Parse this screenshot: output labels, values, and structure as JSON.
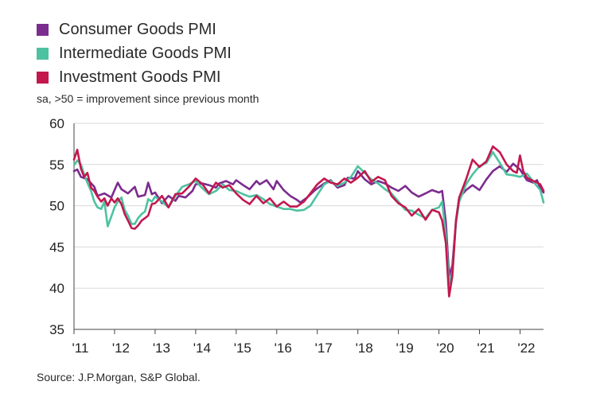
{
  "legend": [
    {
      "label": "Consumer Goods PMI",
      "color": "#7B2C8F"
    },
    {
      "label": "Intermediate Goods PMI",
      "color": "#4DC2A0"
    },
    {
      "label": "Investment Goods PMI",
      "color": "#C2184E"
    }
  ],
  "subtitle": "sa, >50 = improvement since previous month",
  "source": "Source: J.P.Morgan, S&P Global.",
  "chart_data": {
    "type": "line",
    "title": "",
    "xlabel": "",
    "ylabel": "",
    "ylim": [
      35,
      60
    ],
    "yticks": [
      35,
      40,
      45,
      50,
      55,
      60
    ],
    "xlim": [
      2011.0,
      2022.58
    ],
    "xticks": [
      {
        "x": 2011,
        "label": "'11"
      },
      {
        "x": 2012,
        "label": "'12"
      },
      {
        "x": 2013,
        "label": "'13"
      },
      {
        "x": 2014,
        "label": "'14"
      },
      {
        "x": 2015,
        "label": "'15"
      },
      {
        "x": 2016,
        "label": "'16"
      },
      {
        "x": 2017,
        "label": "'17"
      },
      {
        "x": 2018,
        "label": "'18"
      },
      {
        "x": 2019,
        "label": "'19"
      },
      {
        "x": 2020,
        "label": "'20"
      },
      {
        "x": 2021,
        "label": "'21"
      },
      {
        "x": 2022,
        "label": "'22"
      }
    ],
    "grid": "horizontal",
    "legend_position": "top-left",
    "series": [
      {
        "name": "Consumer Goods PMI",
        "color": "#7B2C8F",
        "points": [
          [
            2011.0,
            54.2
          ],
          [
            2011.08,
            54.4
          ],
          [
            2011.17,
            53.5
          ],
          [
            2011.33,
            53.2
          ],
          [
            2011.5,
            52.3
          ],
          [
            2011.58,
            51.2
          ],
          [
            2011.75,
            51.5
          ],
          [
            2011.92,
            51.0
          ],
          [
            2012.08,
            52.8
          ],
          [
            2012.17,
            52.0
          ],
          [
            2012.33,
            51.5
          ],
          [
            2012.5,
            52.3
          ],
          [
            2012.58,
            51.1
          ],
          [
            2012.75,
            51.3
          ],
          [
            2012.83,
            52.8
          ],
          [
            2012.92,
            51.4
          ],
          [
            2013.0,
            51.6
          ],
          [
            2013.17,
            50.3
          ],
          [
            2013.33,
            51.2
          ],
          [
            2013.5,
            50.6
          ],
          [
            2013.58,
            51.2
          ],
          [
            2013.75,
            51.0
          ],
          [
            2013.92,
            51.8
          ],
          [
            2014.0,
            52.6
          ],
          [
            2014.17,
            52.7
          ],
          [
            2014.33,
            52.5
          ],
          [
            2014.5,
            52.2
          ],
          [
            2014.58,
            52.7
          ],
          [
            2014.75,
            53.0
          ],
          [
            2014.92,
            52.6
          ],
          [
            2015.0,
            53.1
          ],
          [
            2015.17,
            52.5
          ],
          [
            2015.33,
            52.0
          ],
          [
            2015.5,
            53.0
          ],
          [
            2015.58,
            52.6
          ],
          [
            2015.75,
            53.1
          ],
          [
            2015.92,
            52.0
          ],
          [
            2016.0,
            53.0
          ],
          [
            2016.17,
            51.9
          ],
          [
            2016.33,
            51.2
          ],
          [
            2016.5,
            50.7
          ],
          [
            2016.58,
            50.4
          ],
          [
            2016.75,
            51.0
          ],
          [
            2016.92,
            51.8
          ],
          [
            2017.0,
            52.1
          ],
          [
            2017.17,
            52.7
          ],
          [
            2017.33,
            53.1
          ],
          [
            2017.5,
            52.2
          ],
          [
            2017.67,
            52.5
          ],
          [
            2017.75,
            53.4
          ],
          [
            2017.92,
            53.3
          ],
          [
            2018.0,
            54.2
          ],
          [
            2018.17,
            53.2
          ],
          [
            2018.33,
            52.6
          ],
          [
            2018.5,
            53.0
          ],
          [
            2018.67,
            52.7
          ],
          [
            2018.83,
            52.2
          ],
          [
            2019.0,
            51.8
          ],
          [
            2019.17,
            52.4
          ],
          [
            2019.33,
            51.6
          ],
          [
            2019.5,
            51.1
          ],
          [
            2019.67,
            51.5
          ],
          [
            2019.83,
            51.9
          ],
          [
            2020.0,
            51.6
          ],
          [
            2020.08,
            51.8
          ],
          [
            2020.17,
            48.0
          ],
          [
            2020.25,
            41.5
          ],
          [
            2020.33,
            42.8
          ],
          [
            2020.42,
            48.0
          ],
          [
            2020.5,
            51.0
          ],
          [
            2020.67,
            51.9
          ],
          [
            2020.83,
            52.5
          ],
          [
            2021.0,
            51.9
          ],
          [
            2021.17,
            53.2
          ],
          [
            2021.33,
            54.2
          ],
          [
            2021.5,
            54.8
          ],
          [
            2021.67,
            54.1
          ],
          [
            2021.83,
            55.1
          ],
          [
            2022.0,
            54.4
          ],
          [
            2022.17,
            53.1
          ],
          [
            2022.33,
            52.8
          ],
          [
            2022.42,
            53.1
          ],
          [
            2022.5,
            52.1
          ],
          [
            2022.58,
            51.6
          ]
        ]
      },
      {
        "name": "Intermediate Goods PMI",
        "color": "#4DC2A0",
        "points": [
          [
            2011.0,
            54.9
          ],
          [
            2011.08,
            55.5
          ],
          [
            2011.17,
            55.0
          ],
          [
            2011.25,
            53.8
          ],
          [
            2011.33,
            52.8
          ],
          [
            2011.42,
            51.8
          ],
          [
            2011.5,
            50.5
          ],
          [
            2011.58,
            49.8
          ],
          [
            2011.67,
            49.6
          ],
          [
            2011.75,
            50.5
          ],
          [
            2011.83,
            47.5
          ],
          [
            2011.92,
            48.7
          ],
          [
            2012.0,
            49.8
          ],
          [
            2012.08,
            50.5
          ],
          [
            2012.17,
            51.0
          ],
          [
            2012.25,
            49.5
          ],
          [
            2012.33,
            48.8
          ],
          [
            2012.42,
            47.8
          ],
          [
            2012.5,
            47.8
          ],
          [
            2012.58,
            48.5
          ],
          [
            2012.67,
            49.0
          ],
          [
            2012.75,
            49.3
          ],
          [
            2012.83,
            50.8
          ],
          [
            2012.92,
            50.5
          ],
          [
            2013.0,
            51.1
          ],
          [
            2013.17,
            50.5
          ],
          [
            2013.33,
            49.8
          ],
          [
            2013.5,
            51.2
          ],
          [
            2013.67,
            52.3
          ],
          [
            2013.83,
            52.6
          ],
          [
            2014.0,
            53.0
          ],
          [
            2014.17,
            52.1
          ],
          [
            2014.33,
            51.4
          ],
          [
            2014.5,
            51.8
          ],
          [
            2014.67,
            52.6
          ],
          [
            2014.83,
            51.9
          ],
          [
            2015.0,
            51.8
          ],
          [
            2015.17,
            51.4
          ],
          [
            2015.33,
            51.1
          ],
          [
            2015.5,
            51.3
          ],
          [
            2015.67,
            50.8
          ],
          [
            2015.83,
            50.2
          ],
          [
            2016.0,
            49.9
          ],
          [
            2016.17,
            49.6
          ],
          [
            2016.33,
            49.6
          ],
          [
            2016.5,
            49.4
          ],
          [
            2016.67,
            49.5
          ],
          [
            2016.83,
            50.0
          ],
          [
            2017.0,
            51.3
          ],
          [
            2017.17,
            52.6
          ],
          [
            2017.33,
            53.0
          ],
          [
            2017.5,
            52.4
          ],
          [
            2017.67,
            52.8
          ],
          [
            2017.83,
            53.5
          ],
          [
            2018.0,
            54.8
          ],
          [
            2018.17,
            54.0
          ],
          [
            2018.33,
            53.2
          ],
          [
            2018.5,
            52.7
          ],
          [
            2018.67,
            52.0
          ],
          [
            2018.83,
            51.5
          ],
          [
            2019.0,
            50.5
          ],
          [
            2019.17,
            49.5
          ],
          [
            2019.33,
            49.4
          ],
          [
            2019.5,
            48.9
          ],
          [
            2019.67,
            48.5
          ],
          [
            2019.83,
            49.5
          ],
          [
            2020.0,
            49.8
          ],
          [
            2020.08,
            50.5
          ],
          [
            2020.17,
            46.5
          ],
          [
            2020.25,
            40.5
          ],
          [
            2020.33,
            42.0
          ],
          [
            2020.42,
            47.8
          ],
          [
            2020.5,
            50.5
          ],
          [
            2020.67,
            52.6
          ],
          [
            2020.83,
            53.8
          ],
          [
            2021.0,
            54.8
          ],
          [
            2021.17,
            55.2
          ],
          [
            2021.33,
            56.5
          ],
          [
            2021.5,
            55.2
          ],
          [
            2021.67,
            53.8
          ],
          [
            2021.83,
            53.7
          ],
          [
            2022.0,
            53.5
          ],
          [
            2022.17,
            53.9
          ],
          [
            2022.33,
            52.9
          ],
          [
            2022.5,
            51.9
          ],
          [
            2022.58,
            50.4
          ]
        ]
      },
      {
        "name": "Investment Goods PMI",
        "color": "#C2184E",
        "points": [
          [
            2011.0,
            55.6
          ],
          [
            2011.08,
            56.8
          ],
          [
            2011.17,
            54.5
          ],
          [
            2011.25,
            53.5
          ],
          [
            2011.33,
            54.0
          ],
          [
            2011.42,
            52.2
          ],
          [
            2011.5,
            51.8
          ],
          [
            2011.58,
            51.1
          ],
          [
            2011.67,
            50.5
          ],
          [
            2011.75,
            50.9
          ],
          [
            2011.83,
            50.0
          ],
          [
            2011.92,
            50.9
          ],
          [
            2012.0,
            50.4
          ],
          [
            2012.08,
            50.9
          ],
          [
            2012.17,
            50.2
          ],
          [
            2012.25,
            49.0
          ],
          [
            2012.33,
            48.2
          ],
          [
            2012.42,
            47.3
          ],
          [
            2012.5,
            47.2
          ],
          [
            2012.58,
            47.6
          ],
          [
            2012.67,
            48.2
          ],
          [
            2012.75,
            48.5
          ],
          [
            2012.83,
            48.8
          ],
          [
            2012.92,
            50.2
          ],
          [
            2013.0,
            50.3
          ],
          [
            2013.17,
            51.2
          ],
          [
            2013.33,
            49.8
          ],
          [
            2013.5,
            51.4
          ],
          [
            2013.67,
            51.5
          ],
          [
            2013.83,
            52.3
          ],
          [
            2014.0,
            53.3
          ],
          [
            2014.17,
            52.6
          ],
          [
            2014.33,
            51.5
          ],
          [
            2014.5,
            52.8
          ],
          [
            2014.67,
            52.2
          ],
          [
            2014.83,
            52.5
          ],
          [
            2015.0,
            51.5
          ],
          [
            2015.17,
            50.7
          ],
          [
            2015.33,
            50.2
          ],
          [
            2015.5,
            51.2
          ],
          [
            2015.67,
            50.3
          ],
          [
            2015.83,
            50.9
          ],
          [
            2016.0,
            49.9
          ],
          [
            2016.17,
            50.5
          ],
          [
            2016.33,
            49.9
          ],
          [
            2016.5,
            49.9
          ],
          [
            2016.67,
            50.5
          ],
          [
            2016.83,
            51.5
          ],
          [
            2017.0,
            52.6
          ],
          [
            2017.17,
            53.3
          ],
          [
            2017.33,
            52.8
          ],
          [
            2017.5,
            52.6
          ],
          [
            2017.67,
            53.3
          ],
          [
            2017.83,
            52.8
          ],
          [
            2018.0,
            53.4
          ],
          [
            2018.17,
            54.2
          ],
          [
            2018.33,
            52.9
          ],
          [
            2018.5,
            53.5
          ],
          [
            2018.67,
            53.1
          ],
          [
            2018.83,
            51.2
          ],
          [
            2019.0,
            50.3
          ],
          [
            2019.17,
            49.8
          ],
          [
            2019.33,
            48.8
          ],
          [
            2019.5,
            49.6
          ],
          [
            2019.67,
            48.3
          ],
          [
            2019.83,
            49.5
          ],
          [
            2020.0,
            49.2
          ],
          [
            2020.08,
            48.2
          ],
          [
            2020.17,
            45.5
          ],
          [
            2020.25,
            39.0
          ],
          [
            2020.33,
            41.5
          ],
          [
            2020.42,
            48.2
          ],
          [
            2020.5,
            51.0
          ],
          [
            2020.67,
            53.2
          ],
          [
            2020.83,
            55.6
          ],
          [
            2021.0,
            54.7
          ],
          [
            2021.17,
            55.4
          ],
          [
            2021.33,
            57.2
          ],
          [
            2021.5,
            56.5
          ],
          [
            2021.67,
            55.0
          ],
          [
            2021.83,
            54.2
          ],
          [
            2021.92,
            54.0
          ],
          [
            2022.0,
            56.1
          ],
          [
            2022.08,
            54.2
          ],
          [
            2022.17,
            53.4
          ],
          [
            2022.33,
            53.0
          ],
          [
            2022.42,
            52.8
          ],
          [
            2022.5,
            52.6
          ],
          [
            2022.58,
            51.8
          ]
        ]
      }
    ]
  }
}
